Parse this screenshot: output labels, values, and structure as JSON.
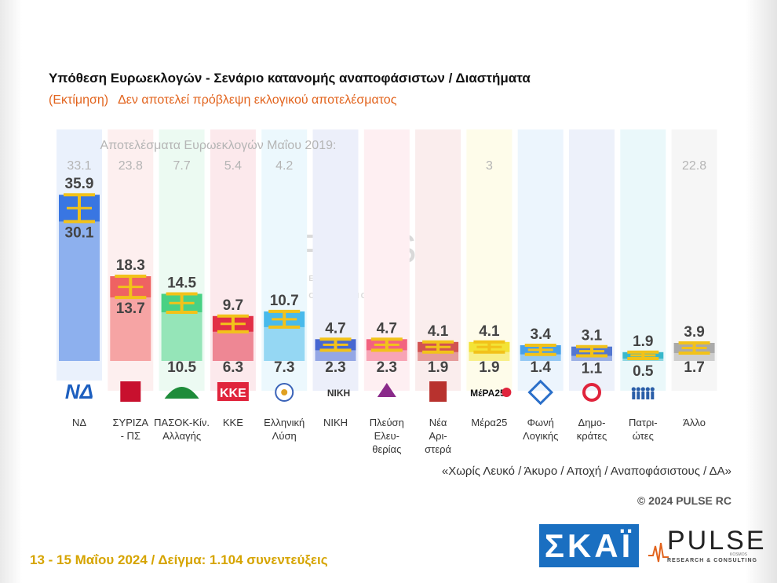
{
  "header": {
    "title": "Υπόθεση Ευρωεκλογών - Σενάριο κατανομής αναποφάσιστων / Διαστήματα",
    "subtitle_part1": "(Εκτίμηση)",
    "subtitle_part2": "Δεν αποτελεί πρόβλεψη εκλογικού αποτελέσματος"
  },
  "chart_data": {
    "type": "bar",
    "subtype": "range",
    "title": "Υπόθεση Ευρωεκλογών - Σενάριο κατανομής αναποφάσιστων / Διαστήματα",
    "prior_results_label": "Αποτελέσματα Ευρωεκλογών Μαΐου 2019:",
    "categories": [
      "ΝΔ",
      "ΣΥΡΙΖΑ - ΠΣ",
      "ΠΑΣΟΚ-Κίν. Αλλαγής",
      "ΚΚΕ",
      "Ελληνική Λύση",
      "ΝΙΚΗ",
      "Πλεύση Ελευ- θερίας",
      "Νέα Αρι- στερά",
      "Μέρα25",
      "Φωνή Λογικής",
      "Δημο- κράτες",
      "Πατρι- ώτες",
      "Άλλο"
    ],
    "category_lines": [
      [
        "ΝΔ"
      ],
      [
        "ΣΥΡΙΖΑ",
        "- ΠΣ"
      ],
      [
        "ΠΑΣΟΚ-Κίν.",
        "Αλλαγής"
      ],
      [
        "ΚΚΕ"
      ],
      [
        "Ελληνική",
        "Λύση"
      ],
      [
        "ΝΙΚΗ"
      ],
      [
        "Πλεύση",
        "Ελευ-",
        "θερίας"
      ],
      [
        "Νέα",
        "Αρι-",
        "στερά"
      ],
      [
        "Μέρα25"
      ],
      [
        "Φωνή",
        "Λογικής"
      ],
      [
        "Δημο-",
        "κράτες"
      ],
      [
        "Πατρι-",
        "ώτες"
      ],
      [
        "Άλλο"
      ]
    ],
    "series": [
      {
        "name": "low",
        "values": [
          30.1,
          13.7,
          10.5,
          6.3,
          7.3,
          2.3,
          2.3,
          1.9,
          1.9,
          1.4,
          1.1,
          0.5,
          1.7
        ]
      },
      {
        "name": "high",
        "values": [
          35.9,
          18.3,
          14.5,
          9.7,
          10.7,
          4.7,
          4.7,
          4.1,
          4.1,
          3.4,
          3.1,
          1.9,
          3.9
        ]
      }
    ],
    "results_2019": [
      "33.1",
      "23.8",
      "7.7",
      "5.4",
      "4.2",
      "",
      "",
      "",
      "3",
      "",
      "",
      "",
      "22.8"
    ],
    "colors": [
      "#2f6fe0",
      "#ee5a5a",
      "#3ecf7e",
      "#e0243c",
      "#3fb6ea",
      "#3d5fcf",
      "#f25a78",
      "#d04a48",
      "#f2e22a",
      "#3d9be9",
      "#4a70cf",
      "#2fb4c8",
      "#a6a6a6"
    ],
    "range_marker_color": "#f2c21a",
    "ylim": [
      0,
      40
    ]
  },
  "logos": [
    {
      "icon": "nd-logo",
      "text": "ΝΔ"
    },
    {
      "icon": "syriza-logo",
      "text": ""
    },
    {
      "icon": "pasok-logo",
      "text": ""
    },
    {
      "icon": "kke-logo",
      "text": "ΚΚΕ"
    },
    {
      "icon": "elliniki-lysi-logo",
      "text": ""
    },
    {
      "icon": "niki-logo",
      "text": "ΝΙΚΗ"
    },
    {
      "icon": "plefsi-logo",
      "text": ""
    },
    {
      "icon": "nea-aristera-logo",
      "text": ""
    },
    {
      "icon": "mera25-logo",
      "text": "ΜέΡΑ25"
    },
    {
      "icon": "foni-logikis-logo",
      "text": ""
    },
    {
      "icon": "dimokrates-logo",
      "text": ""
    },
    {
      "icon": "patriotes-logo",
      "text": ""
    },
    {
      "icon": "allo-none",
      "text": ""
    }
  ],
  "notes": {
    "excluded": "«Χωρίς Λευκό / Άκυρο / Αποχή / Αναποφάσιστους / ΔΑ»",
    "copyright": "© 2024 PULSE RC"
  },
  "footer": {
    "text": "13 - 15  Μαΐου 2024  /  Δείγμα:  1.104 συνεντεύξεις"
  },
  "brand": {
    "skai": "ΣΚΑΪ",
    "pulse": "PULSE",
    "pulse_sub": "RESEARCH & CONSULTING",
    "kosmos": "KOSMOS"
  }
}
